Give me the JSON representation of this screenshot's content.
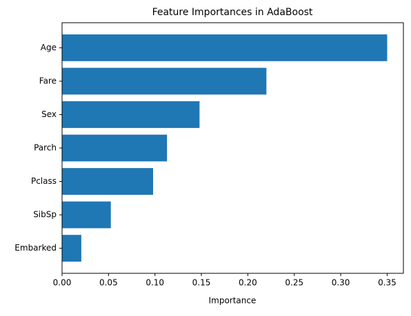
{
  "chart_data": {
    "type": "barh",
    "title": "Feature Importances in AdaBoost",
    "xlabel": "Importance",
    "categories": [
      "Age",
      "Fare",
      "Sex",
      "Parch",
      "Pclass",
      "SibSp",
      "Embarked"
    ],
    "values": [
      0.35,
      0.22,
      0.148,
      0.113,
      0.098,
      0.0525,
      0.0207
    ],
    "color": "#1f77b4",
    "xlim": [
      0,
      0.3675
    ],
    "xticks": [
      {
        "value": 0,
        "label": "0.00"
      },
      {
        "value": 0.05,
        "label": "0.05"
      },
      {
        "value": 0.1,
        "label": "0.10"
      },
      {
        "value": 0.15,
        "label": "0.15"
      },
      {
        "value": 0.2,
        "label": "0.20"
      },
      {
        "value": 0.25,
        "label": "0.25"
      },
      {
        "value": 0.3,
        "label": "0.30"
      },
      {
        "value": 0.35,
        "label": "0.35"
      }
    ]
  }
}
